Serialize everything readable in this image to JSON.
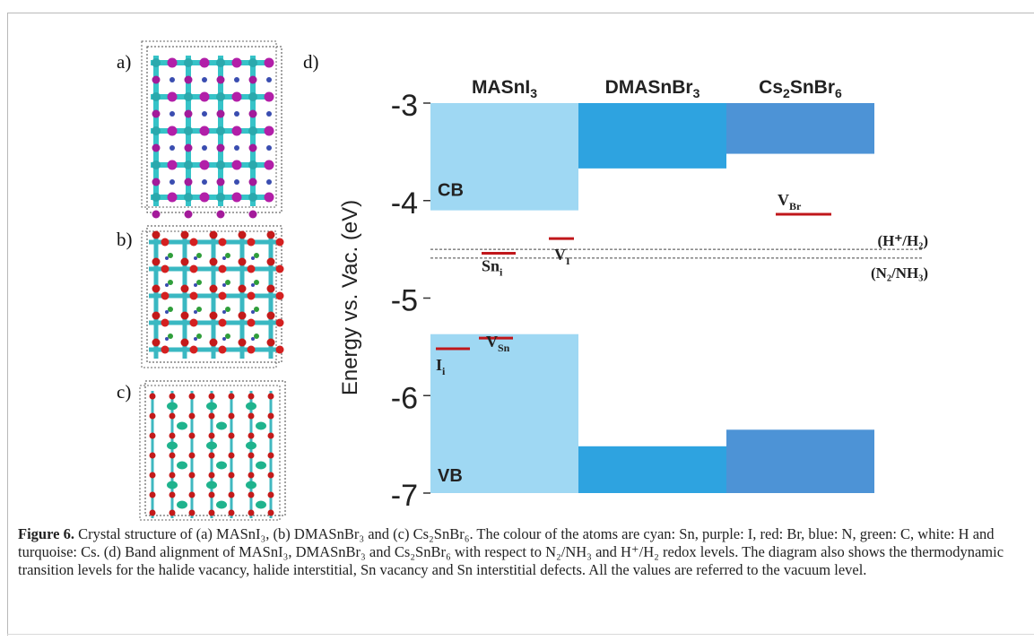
{
  "panels": {
    "a": "a)",
    "b": "b)",
    "c": "c)",
    "d": "d)"
  },
  "chart_data": {
    "type": "band-alignment",
    "ylabel": "Energy vs. Vac. (eV)",
    "ylim": [
      -7,
      -3
    ],
    "yticks": [
      -3,
      -4,
      -5,
      -6,
      -7
    ],
    "materials": [
      {
        "label_main": "MASnI",
        "label_sub": "3",
        "label_after": "",
        "cbm": -4.1,
        "vbm": -5.37,
        "color": "#9fd8f3"
      },
      {
        "label_main": "DMASnBr",
        "label_sub": "3",
        "label_after": "",
        "cbm": -3.67,
        "vbm": -6.52,
        "color": "#2ea3e0"
      },
      {
        "label_main": "Cs",
        "label_sub": "2",
        "label_after": "SnBr",
        "label_sub2": "6",
        "cbm": -3.52,
        "vbm": -6.35,
        "color": "#4d93d6"
      }
    ],
    "band_labels": {
      "cb": "CB",
      "vb": "VB"
    },
    "defects": [
      {
        "base": "Sn",
        "sub": "i",
        "energy": -4.54,
        "material_index": 0
      },
      {
        "base": "V",
        "sub": "I",
        "energy": -4.39,
        "material_index": 0
      },
      {
        "base": "I",
        "sub": "i",
        "energy": -5.52,
        "material_index": 0
      },
      {
        "base": "V",
        "sub": "Sn",
        "energy": -5.41,
        "material_index": 0
      },
      {
        "base": "V",
        "sub": "Br",
        "energy": -4.14,
        "material_index": 2
      }
    ],
    "redox_levels": [
      {
        "label": "(H⁺/H₂)",
        "energy": -4.5
      },
      {
        "label": "(N₂/NH₃)",
        "energy": -4.59
      }
    ],
    "defect_color": "#c0171b"
  },
  "caption": {
    "label": "Figure 6.",
    "text": " Crystal structure of (a) MASnI₃, (b) DMASnBr₃ and (c) Cs₂SnBr₆. The colour of the atoms are cyan: Sn, purple: I, red: Br, blue: N, green: C, white: H and turquoise: Cs. (d) Band alignment of MASnI₃, DMASnBr₃ and Cs₂SnBr₆ with respect to N₂/NH₃ and H⁺/H₂ redox levels. The diagram also shows the thermodynamic transition levels for the halide vacancy, halide interstitial, Sn vacancy and Sn interstitial defects. All the values are referred to the vacuum level."
  }
}
